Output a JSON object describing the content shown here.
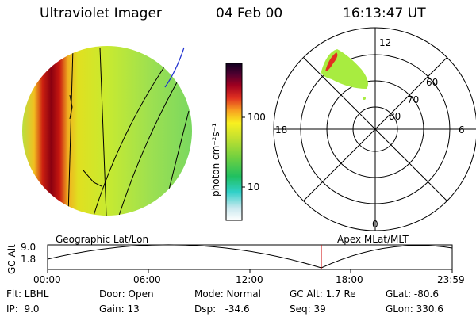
{
  "header": {
    "instrument": "Ultraviolet Imager",
    "date": "04 Feb 00",
    "time": "16:13:47 UT"
  },
  "colorbar": {
    "unit_label": "photon cm⁻²s⁻¹",
    "ticks": [
      "100",
      "10"
    ]
  },
  "polar_plot": {
    "mlt_labels": [
      "12",
      "18",
      "6",
      "0"
    ],
    "mlat_labels": [
      "60",
      "70",
      "80"
    ]
  },
  "timeline": {
    "left_label": "Geographic Lat/Lon",
    "right_label": "Apex MLat/MLT",
    "axis_title": "GC Alt",
    "y_ticks": [
      "9.0",
      "1.8"
    ],
    "x_ticks": [
      "00:00",
      "06:00",
      "12:00",
      "18:00",
      "23:59"
    ],
    "current_time_marker_color": "#cc0000"
  },
  "footer": {
    "row1": [
      "Flt: LBHL",
      "Door: Open",
      "Mode: Normal",
      "GC Alt: 1.7 Re",
      "GLat: -80.6"
    ],
    "row2": [
      "IP:  9.0",
      "Gain: 13",
      "Dsp:   -34.6",
      "Seq: 39",
      "GLon: 330.6"
    ]
  }
}
